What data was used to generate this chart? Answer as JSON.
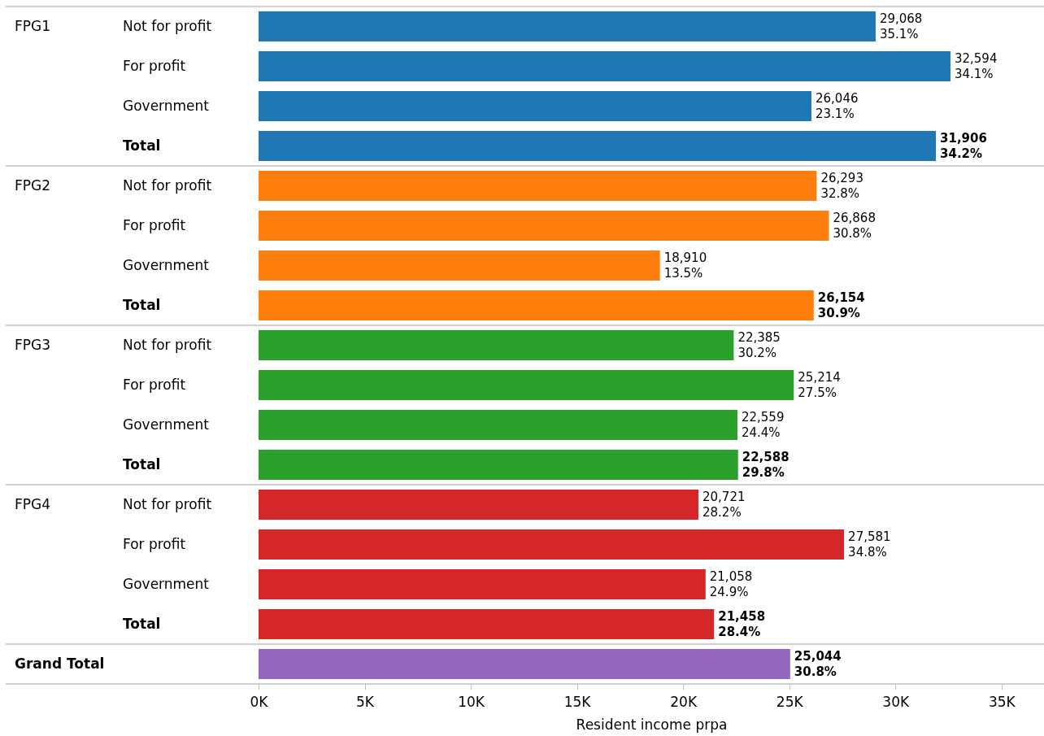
{
  "chart_data": {
    "type": "bar",
    "orientation": "horizontal",
    "categories": [
      "Not for profit",
      "For profit",
      "Government",
      "Total",
      "Not for profit",
      "For profit",
      "Government",
      "Total",
      "Not for profit",
      "For profit",
      "Government",
      "Total",
      "Not for profit",
      "For profit",
      "Government",
      "Total",
      null
    ],
    "series": [
      {
        "color": "#1f77b4",
        "values": [
          29068,
          32594,
          26046,
          31906,
          null,
          null,
          null,
          null,
          null,
          null,
          null,
          null,
          null,
          null,
          null,
          null,
          null
        ],
        "value_labels": [
          "29,068\n35.1%",
          "32,594\n34.1%",
          "26,046\n23.1%",
          "31,906\n34.2%",
          null,
          null,
          null,
          null,
          null,
          null,
          null,
          null,
          null,
          null,
          null,
          null,
          null
        ]
      },
      {
        "color": "#ff7f0e",
        "values": [
          null,
          null,
          null,
          null,
          26293,
          26868,
          18910,
          26154,
          null,
          null,
          null,
          null,
          null,
          null,
          null,
          null,
          null
        ],
        "value_labels": [
          null,
          null,
          null,
          null,
          "26,293\n32.8%",
          "26,868\n30.8%",
          "18,910\n13.5%",
          "26,154\n30.9%",
          null,
          null,
          null,
          null,
          null,
          null,
          null,
          null,
          null
        ]
      },
      {
        "color": "#2ca02c",
        "values": [
          null,
          null,
          null,
          null,
          null,
          null,
          null,
          null,
          22385,
          25214,
          22559,
          22588,
          null,
          null,
          null,
          null,
          null
        ],
        "value_labels": [
          null,
          null,
          null,
          null,
          null,
          null,
          null,
          null,
          "22,385\n30.2%",
          "25,214\n27.5%",
          "22,559\n24.4%",
          "22,588\n29.8%",
          null,
          null,
          null,
          null,
          null
        ]
      },
      {
        "color": "#d62728",
        "values": [
          null,
          null,
          null,
          null,
          null,
          null,
          null,
          null,
          null,
          null,
          null,
          null,
          20721,
          27581,
          21058,
          21458,
          null
        ],
        "value_labels": [
          null,
          null,
          null,
          null,
          null,
          null,
          null,
          null,
          null,
          null,
          null,
          null,
          "20,721\n28.2%",
          "27,581\n34.8%",
          "21,058\n24.9%",
          "21,458\n28.4%",
          null
        ]
      },
      {
        "color": "#9467bd",
        "values": [
          null,
          null,
          null,
          null,
          null,
          null,
          null,
          null,
          null,
          null,
          null,
          null,
          null,
          null,
          null,
          null,
          25044
        ],
        "value_labels": [
          null,
          null,
          null,
          null,
          null,
          null,
          null,
          null,
          null,
          null,
          null,
          null,
          null,
          null,
          null,
          null,
          "25,044\n30.8%"
        ]
      }
    ],
    "annotations": [
      "FPG1",
      "FPG2",
      "FPG3",
      "FPG4",
      "Grand Total"
    ],
    "xlabel": "Resident income prpa",
    "xlim": [
      0,
      37000
    ],
    "xticks": [
      {
        "value": 0,
        "label": "0K"
      },
      {
        "value": 5000,
        "label": "5K"
      },
      {
        "value": 10000,
        "label": "10K"
      },
      {
        "value": 15000,
        "label": "15K"
      },
      {
        "value": 20000,
        "label": "20K"
      },
      {
        "value": 25000,
        "label": "25K"
      },
      {
        "value": 30000,
        "label": "30K"
      },
      {
        "value": 35000,
        "label": "35K"
      }
    ]
  }
}
